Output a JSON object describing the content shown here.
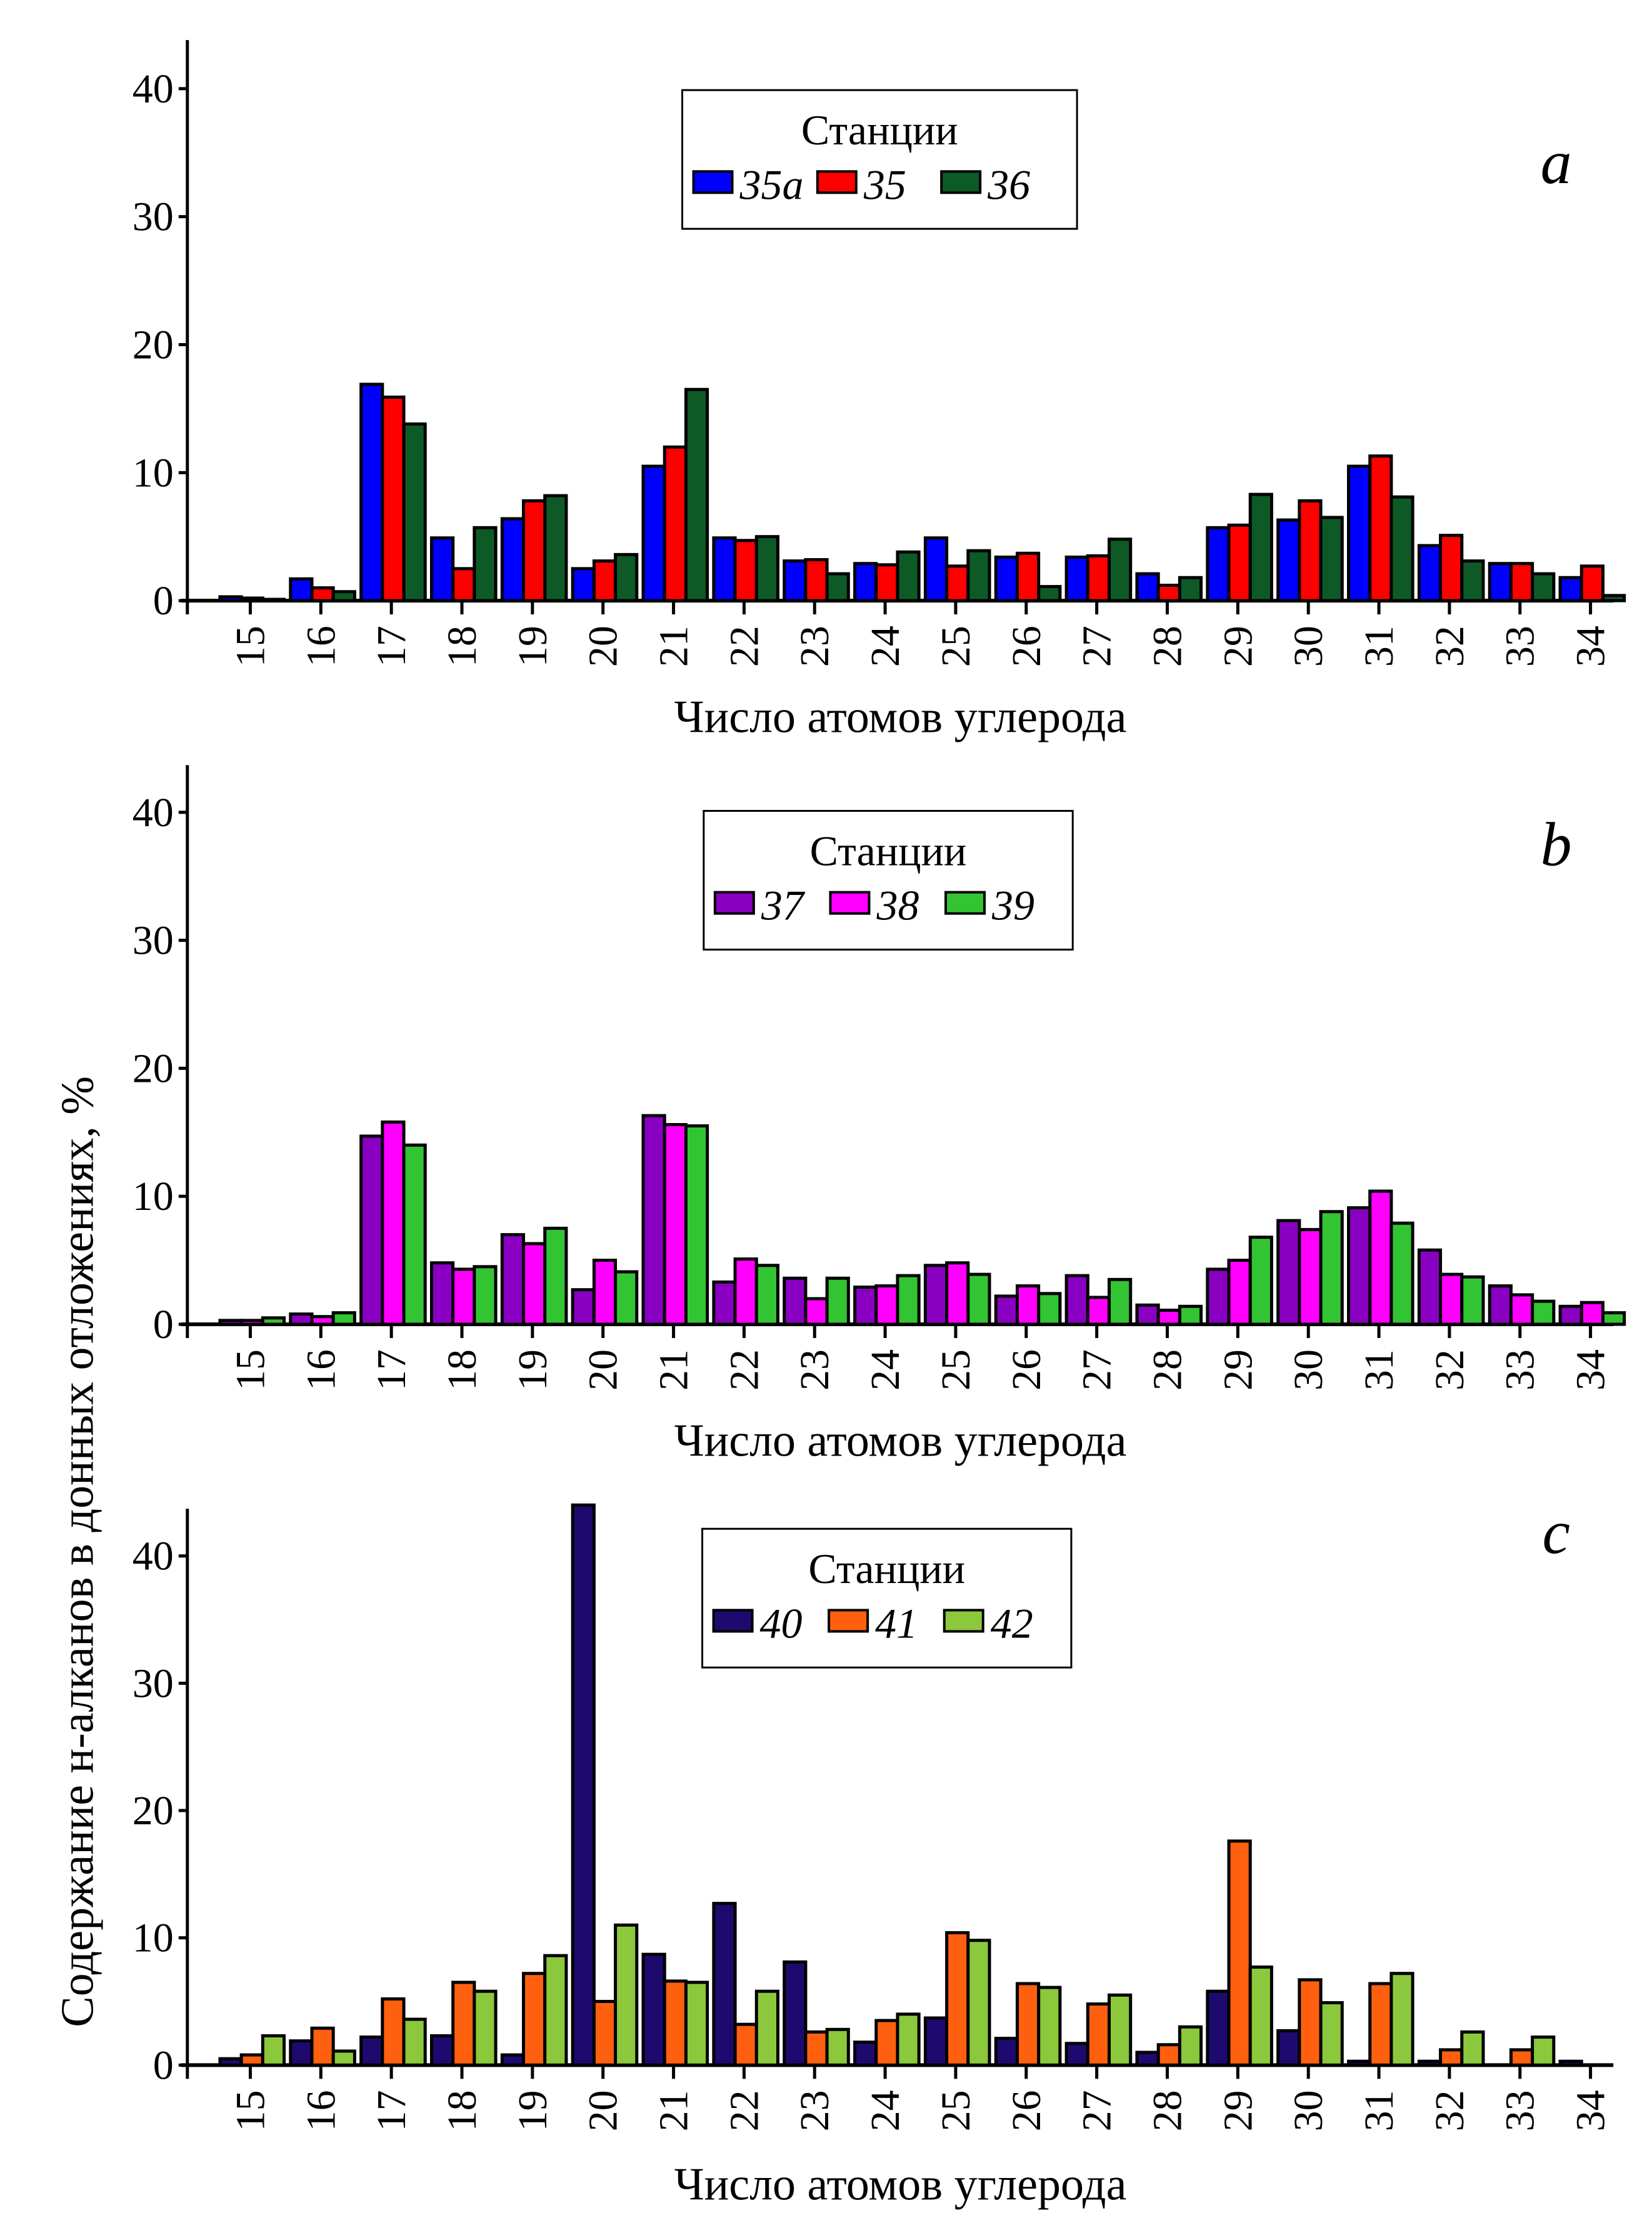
{
  "ylabel": "Содержание н-алканов в донных отложениях, %",
  "chart_data": [
    {
      "type": "bar",
      "panel_label": "a",
      "xlabel": "Число атомов углерода",
      "ylabel": "Содержание н-алканов в донных отложениях, %",
      "ylim": [
        0,
        44
      ],
      "yticks": [
        0,
        10,
        20,
        30,
        40
      ],
      "legend_title": "Станции",
      "legend_position": "top-center",
      "categories": [
        "15",
        "16",
        "17",
        "18",
        "19",
        "20",
        "21",
        "22",
        "23",
        "24",
        "25",
        "26",
        "27",
        "28",
        "29",
        "30",
        "31",
        "32",
        "33",
        "34"
      ],
      "series": [
        {
          "name": "35a",
          "color": "#0000ff",
          "values": [
            0.3,
            1.7,
            16.9,
            4.9,
            6.4,
            2.5,
            10.5,
            4.9,
            3.1,
            2.9,
            4.9,
            3.4,
            3.4,
            2.1,
            5.7,
            6.3,
            10.5,
            4.3,
            2.9,
            1.8
          ]
        },
        {
          "name": "35",
          "color": "#ff0000",
          "values": [
            0.2,
            1.0,
            15.9,
            2.5,
            7.8,
            3.1,
            12.0,
            4.7,
            3.2,
            2.8,
            2.7,
            3.7,
            3.5,
            1.2,
            5.9,
            7.8,
            11.3,
            5.1,
            2.9,
            2.7
          ]
        },
        {
          "name": "36",
          "color": "#0d5a26",
          "values": [
            0.1,
            0.7,
            13.8,
            5.7,
            8.2,
            3.6,
            16.5,
            5.0,
            2.1,
            3.8,
            3.9,
            1.1,
            4.8,
            1.8,
            8.3,
            6.5,
            8.1,
            3.1,
            2.1,
            0.4
          ]
        }
      ]
    },
    {
      "type": "bar",
      "panel_label": "b",
      "xlabel": "Число атомов углерода",
      "ylabel": "Содержание н-алканов в донных отложениях, %",
      "ylim": [
        0,
        44
      ],
      "yticks": [
        0,
        10,
        20,
        30,
        40
      ],
      "legend_title": "Станции",
      "legend_position": "top-center",
      "categories": [
        "15",
        "16",
        "17",
        "18",
        "19",
        "20",
        "21",
        "22",
        "23",
        "24",
        "25",
        "26",
        "27",
        "28",
        "29",
        "30",
        "31",
        "32",
        "33",
        "34"
      ],
      "series": [
        {
          "name": "37",
          "color": "#8a00c2",
          "values": [
            0.3,
            0.8,
            14.7,
            4.8,
            7.0,
            2.7,
            16.3,
            3.3,
            3.6,
            2.9,
            4.6,
            2.2,
            3.8,
            1.5,
            4.3,
            8.1,
            9.1,
            5.8,
            3.0,
            1.4
          ]
        },
        {
          "name": "38",
          "color": "#ff00ff",
          "values": [
            0.3,
            0.6,
            15.8,
            4.3,
            6.3,
            5.0,
            15.6,
            5.1,
            2.0,
            3.0,
            4.8,
            3.0,
            2.1,
            1.1,
            5.0,
            7.4,
            10.4,
            3.9,
            2.3,
            1.7
          ]
        },
        {
          "name": "39",
          "color": "#33c433",
          "values": [
            0.5,
            0.9,
            14.0,
            4.5,
            7.5,
            4.1,
            15.5,
            4.6,
            3.6,
            3.8,
            3.9,
            2.4,
            3.5,
            1.4,
            6.8,
            8.8,
            7.9,
            3.7,
            1.8,
            0.9
          ]
        }
      ]
    },
    {
      "type": "bar",
      "panel_label": "c",
      "xlabel": "Число атомов углерода",
      "ylabel": "Содержание н-алканов в донных отложениях, %",
      "ylim": [
        0,
        44
      ],
      "yticks": [
        0,
        10,
        20,
        30,
        40
      ],
      "legend_title": "Станции",
      "legend_position": "top-center",
      "categories": [
        "15",
        "16",
        "17",
        "18",
        "19",
        "20",
        "21",
        "22",
        "23",
        "24",
        "25",
        "26",
        "27",
        "28",
        "29",
        "30",
        "31",
        "32",
        "33",
        "34"
      ],
      "series": [
        {
          "name": "40",
          "color": "#1e0a6e",
          "values": [
            0.5,
            1.9,
            2.2,
            2.3,
            0.8,
            44.0,
            8.7,
            12.7,
            8.1,
            1.8,
            3.7,
            2.1,
            1.7,
            1.0,
            5.8,
            2.7,
            0.3,
            0.3,
            0.0,
            0.3
          ]
        },
        {
          "name": "41",
          "color": "#ff6010",
          "values": [
            0.8,
            2.9,
            5.2,
            6.5,
            7.2,
            5.0,
            6.6,
            3.2,
            2.6,
            3.5,
            10.4,
            6.4,
            4.8,
            1.6,
            17.6,
            6.7,
            6.4,
            1.2,
            1.2,
            0.0
          ]
        },
        {
          "name": "42",
          "color": "#8cc83c",
          "values": [
            2.3,
            1.1,
            3.6,
            5.8,
            8.6,
            11.0,
            6.5,
            5.8,
            2.8,
            4.0,
            9.8,
            6.1,
            5.5,
            3.0,
            7.7,
            4.9,
            7.2,
            2.6,
            2.2,
            0.0
          ]
        }
      ]
    }
  ]
}
